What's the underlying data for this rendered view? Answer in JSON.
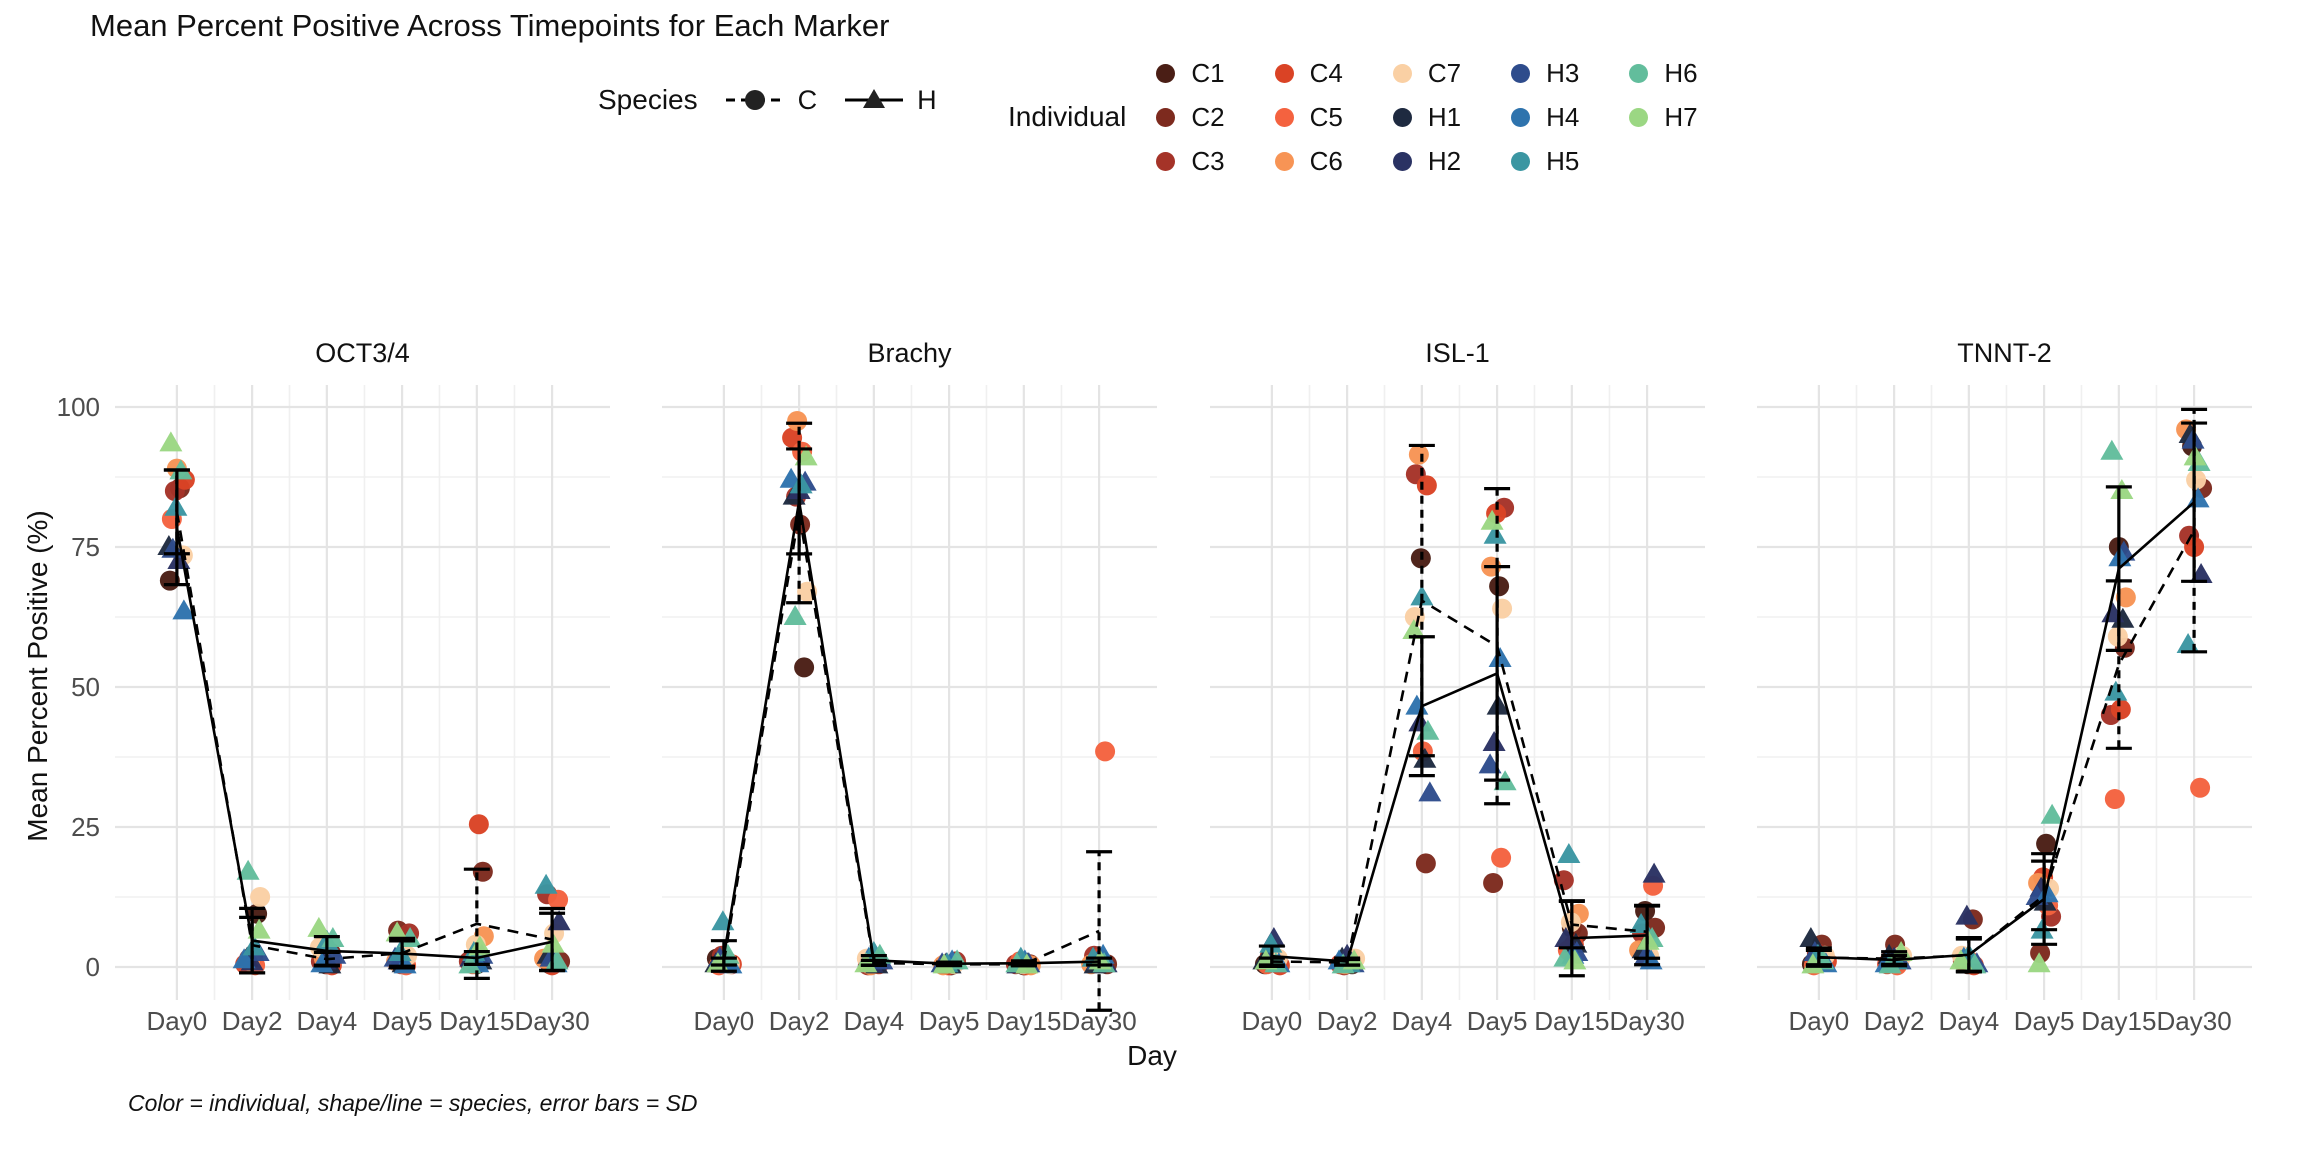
{
  "title": "Mean Percent Positive Across Timepoints for Each Marker",
  "caption": "Color = individual, shape/line = species, error bars = SD",
  "axes": {
    "x_title": "Day",
    "y_title": "Mean Percent Positive (%)",
    "y_ticks": [
      0,
      25,
      50,
      75,
      100
    ],
    "x_tick_labels": [
      "Day0",
      "Day2",
      "Day4",
      "Day5",
      "Day15",
      "Day30"
    ]
  },
  "legend": {
    "species_title": "Species",
    "species": [
      {
        "id": "C",
        "marker": "circle",
        "line": "dashed"
      },
      {
        "id": "H",
        "marker": "triangle",
        "line": "solid"
      }
    ],
    "individual_title": "Individual",
    "individuals": [
      {
        "id": "C1",
        "color": "#4A1E15"
      },
      {
        "id": "C2",
        "color": "#7D2A1E"
      },
      {
        "id": "C3",
        "color": "#A53328"
      },
      {
        "id": "C4",
        "color": "#DA4325"
      },
      {
        "id": "C5",
        "color": "#F4623F"
      },
      {
        "id": "C6",
        "color": "#F79455"
      },
      {
        "id": "C7",
        "color": "#FAD0A4"
      },
      {
        "id": "H1",
        "color": "#1E2A40"
      },
      {
        "id": "H2",
        "color": "#2A3263"
      },
      {
        "id": "H3",
        "color": "#2E4C8C"
      },
      {
        "id": "H4",
        "color": "#2E73AD"
      },
      {
        "id": "H5",
        "color": "#3B96A2"
      },
      {
        "id": "H6",
        "color": "#62BD9C"
      },
      {
        "id": "H7",
        "color": "#9BD783"
      }
    ]
  },
  "style": {
    "grid_major": "#E4E4E4",
    "grid_minor": "#F0F0F0",
    "tick_text": "#4D4D4D",
    "stat_color": "#000000"
  },
  "chart_data": {
    "type": "scatter",
    "title": "Mean Percent Positive Across Timepoints for Each Marker",
    "xlabel": "Day",
    "ylabel": "Mean Percent Positive (%)",
    "ylim": [
      -6,
      104
    ],
    "yticks": [
      0,
      25,
      50,
      75,
      100
    ],
    "grid": true,
    "legend_position": "top",
    "days": [
      "Day0",
      "Day2",
      "Day4",
      "Day5",
      "Day15",
      "Day30"
    ],
    "note": "points = individual values; lines = species means; error bars = SD; C plotted as dashed line with circles, H as solid line with triangles",
    "facets": [
      {
        "name": "OCT3/4",
        "values": {
          "Day0": {
            "C1": 69,
            "C2": 85.5,
            "C3": 85,
            "C4": 87,
            "C5": 80,
            "C6": 89,
            "C7": 73.5,
            "H1": 75,
            "H2": 72.5,
            "H3": 74.5,
            "H4": 63.5,
            "H5": 82,
            "H6": 88.5,
            "H7": 93.5
          },
          "Day2": {
            "C1": 9.5,
            "C2": 2,
            "C3": 1.5,
            "C4": 0.5,
            "C5": 0.3,
            "C6": 1,
            "C7": 12.5,
            "H1": 1.5,
            "H2": 0.8,
            "H3": 2.5,
            "H4": 1.2,
            "H5": 3.5,
            "H6": 17,
            "H7": 6.5
          },
          "Day4": {
            "C1": 0.5,
            "C2": 2.5,
            "C3": 1,
            "C4": 0.3,
            "C5": 0.5,
            "C6": 1.5,
            "C7": 3.5,
            "H1": 0.3,
            "H2": 1,
            "H3": 2,
            "H4": 0.5,
            "H5": 4.5,
            "H6": 5,
            "H7": 6.8
          },
          "Day5": {
            "C1": 1,
            "C2": 6.5,
            "C3": 6,
            "C4": 0.5,
            "C5": 0.3,
            "C6": 1,
            "C7": 2,
            "H1": 0.5,
            "H2": 1,
            "H3": 1.5,
            "H4": 0.3,
            "H5": 2.5,
            "H6": 5,
            "H7": 6
          },
          "Day15": {
            "C1": 0.5,
            "C2": 17,
            "C3": 1,
            "C4": 25.5,
            "C5": 0.5,
            "C6": 5.5,
            "C7": 4,
            "H1": 1,
            "H2": 1.5,
            "H3": 2,
            "H4": 0.5,
            "H5": 2.5,
            "H6": 0.3,
            "H7": 3.5
          },
          "Day30": {
            "C1": 0.5,
            "C2": 1,
            "C3": 13,
            "C4": 0.3,
            "C5": 12,
            "C6": 1.5,
            "C7": 6,
            "H1": 2,
            "H2": 8,
            "H3": 1.5,
            "H4": 0.5,
            "H5": 14.5,
            "H6": 1,
            "H7": 4
          }
        }
      },
      {
        "name": "Brachy",
        "values": {
          "Day0": {
            "C1": 1.5,
            "C2": 1,
            "C3": 2,
            "C4": 0.5,
            "C5": 0.3,
            "C6": 1,
            "C7": 0.5,
            "H1": 0.5,
            "H2": 1,
            "H3": 1.5,
            "H4": 0.3,
            "H5": 8,
            "H6": 2,
            "H7": 0.5
          },
          "Day2": {
            "C1": 53.5,
            "C2": 79,
            "C3": 84,
            "C4": 94.5,
            "C5": 92,
            "C6": 97.5,
            "C7": 67,
            "H1": 84,
            "H2": 85,
            "H3": 86.5,
            "H4": 87,
            "H5": 86,
            "H6": 62.5,
            "H7": 91
          },
          "Day4": {
            "C1": 0.5,
            "C2": 1,
            "C3": 0.3,
            "C4": 0.5,
            "C5": 1,
            "C6": 0.3,
            "C7": 1.5,
            "H1": 0.3,
            "H2": 0.5,
            "H3": 1,
            "H4": 1.5,
            "H5": 2.5,
            "H6": 2,
            "H7": 0.5
          },
          "Day5": {
            "C1": 0.3,
            "C2": 0.5,
            "C3": 1,
            "C4": 0.3,
            "C5": 0.5,
            "C6": 0.3,
            "C7": 0.5,
            "H1": 0.3,
            "H2": 0.5,
            "H3": 0.5,
            "H4": 1,
            "H5": 0.5,
            "H6": 1,
            "H7": 0.3
          },
          "Day15": {
            "C1": 0.3,
            "C2": 0.5,
            "C3": 0.5,
            "C4": 0.3,
            "C5": 1,
            "C6": 0.3,
            "C7": 0.5,
            "H1": 0.5,
            "H2": 0.3,
            "H3": 0.5,
            "H4": 1,
            "H5": 1.5,
            "H6": 0.5,
            "H7": 0.3
          },
          "Day30": {
            "C1": 1,
            "C2": 0.5,
            "C3": 2,
            "C4": 1.5,
            "C5": 38.5,
            "C6": 0.5,
            "C7": 1,
            "H1": 0.3,
            "H2": 0.5,
            "H3": 1,
            "H4": 2,
            "H5": 1.5,
            "H6": 0.5,
            "H7": 1
          }
        }
      },
      {
        "name": "ISL-1",
        "values": {
          "Day0": {
            "C1": 0.5,
            "C2": 1,
            "C3": 2,
            "C4": 0.3,
            "C5": 0.5,
            "C6": 1,
            "C7": 1.5,
            "H1": 1,
            "H2": 5,
            "H3": 1.5,
            "H4": 0.5,
            "H5": 4,
            "H6": 0.5,
            "H7": 1
          },
          "Day2": {
            "C1": 0.5,
            "C2": 1,
            "C3": 0.3,
            "C4": 0.5,
            "C5": 1.5,
            "C6": 0.5,
            "C7": 1.5,
            "H1": 1.5,
            "H2": 2,
            "H3": 0.5,
            "H4": 1,
            "H5": 0.5,
            "H6": 0.3,
            "H7": 1
          },
          "Day4": {
            "C1": 73,
            "C2": 18.5,
            "C3": 88,
            "C4": 86,
            "C5": 38.5,
            "C6": 91.5,
            "C7": 62.5,
            "H1": 37,
            "H2": 43.5,
            "H3": 31,
            "H4": 46.5,
            "H5": 66,
            "H6": 42,
            "H7": 60
          },
          "Day5": {
            "C1": 68,
            "C2": 15,
            "C3": 82,
            "C4": 81,
            "C5": 19.5,
            "C6": 71.5,
            "C7": 64,
            "H1": 46.5,
            "H2": 40,
            "H3": 36,
            "H4": 55,
            "H5": 77,
            "H6": 33,
            "H7": 79.5
          },
          "Day15": {
            "C1": 7,
            "C2": 6,
            "C3": 15.5,
            "C4": 4,
            "C5": 3,
            "C6": 9.5,
            "C7": 8,
            "H1": 4,
            "H2": 5,
            "H3": 2.5,
            "H4": 2,
            "H5": 20,
            "H6": 1.5,
            "H7": 1
          },
          "Day30": {
            "C1": 10,
            "C2": 7,
            "C3": 6,
            "C4": 1.5,
            "C5": 14.5,
            "C6": 3,
            "C7": 2,
            "H1": 3,
            "H2": 16.5,
            "H3": 2,
            "H4": 1,
            "H5": 7.5,
            "H6": 5,
            "H7": 4.5
          }
        }
      },
      {
        "name": "TNNT-2",
        "values": {
          "Day0": {
            "C1": 0.5,
            "C2": 4,
            "C3": 2.5,
            "C4": 1,
            "C5": 0.3,
            "C6": 1.5,
            "C7": 2,
            "H1": 5,
            "H2": 1,
            "H3": 2.5,
            "H4": 0.5,
            "H5": 2,
            "H6": 1,
            "H7": 0.3
          },
          "Day2": {
            "C1": 1,
            "C2": 4,
            "C3": 1.5,
            "C4": 0.5,
            "C5": 0.3,
            "C6": 1,
            "C7": 2,
            "H1": 2,
            "H2": 1.5,
            "H3": 1,
            "H4": 0.5,
            "H5": 1,
            "H6": 0.3,
            "H7": 2.5
          },
          "Day4": {
            "C1": 0.5,
            "C2": 8.5,
            "C3": 1,
            "C4": 0.3,
            "C5": 1,
            "C6": 1.5,
            "C7": 2,
            "H1": 1,
            "H2": 9,
            "H3": 0.5,
            "H4": 1.5,
            "H5": 2,
            "H6": 0.3,
            "H7": 1
          },
          "Day5": {
            "C1": 22,
            "C2": 2.5,
            "C3": 9,
            "C4": 16,
            "C5": 11,
            "C6": 15,
            "C7": 14,
            "H1": 11.5,
            "H2": 14,
            "H3": 12.5,
            "H4": 13,
            "H5": 6.5,
            "H6": 27,
            "H7": 0.5
          },
          "Day15": {
            "C1": 75,
            "C2": 57,
            "C3": 45,
            "C4": 46,
            "C5": 30,
            "C6": 66,
            "C7": 59,
            "H1": 62,
            "H2": 63,
            "H3": 74,
            "H4": 73,
            "H5": 49,
            "H6": 92,
            "H7": 85
          },
          "Day30": {
            "C1": 93,
            "C2": 85.5,
            "C3": 77,
            "C4": 75,
            "C5": 32,
            "C6": 96,
            "C7": 87,
            "H1": 95,
            "H2": 70,
            "H3": 94,
            "H4": 83.5,
            "H5": 57.5,
            "H6": 90,
            "H7": 91
          }
        }
      }
    ]
  }
}
